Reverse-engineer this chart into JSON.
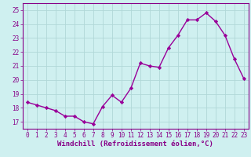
{
  "x": [
    0,
    1,
    2,
    3,
    4,
    5,
    6,
    7,
    8,
    9,
    10,
    11,
    12,
    13,
    14,
    15,
    16,
    17,
    18,
    19,
    20,
    21,
    22,
    23
  ],
  "y": [
    18.4,
    18.2,
    18.0,
    17.8,
    17.4,
    17.4,
    17.0,
    16.85,
    18.1,
    18.9,
    18.4,
    19.4,
    21.2,
    21.0,
    20.9,
    22.3,
    23.2,
    24.3,
    24.3,
    24.8,
    24.2,
    23.2,
    21.5,
    20.1
  ],
  "line_color": "#990099",
  "marker": "D",
  "markersize": 2.2,
  "linewidth": 1.0,
  "xlabel": "Windchill (Refroidissement éolien,°C)",
  "ylim": [
    16.5,
    25.5
  ],
  "yticks": [
    17,
    18,
    19,
    20,
    21,
    22,
    23,
    24,
    25
  ],
  "xlim": [
    -0.5,
    23.5
  ],
  "xticks": [
    0,
    1,
    2,
    3,
    4,
    5,
    6,
    7,
    8,
    9,
    10,
    11,
    12,
    13,
    14,
    15,
    16,
    17,
    18,
    19,
    20,
    21,
    22,
    23
  ],
  "bg_color": "#cff0f0",
  "grid_color": "#b0d8d8",
  "tick_color": "#880088",
  "label_color": "#880088",
  "spine_color": "#880088",
  "tick_fontsize": 5.5,
  "xlabel_fontsize": 6.5
}
